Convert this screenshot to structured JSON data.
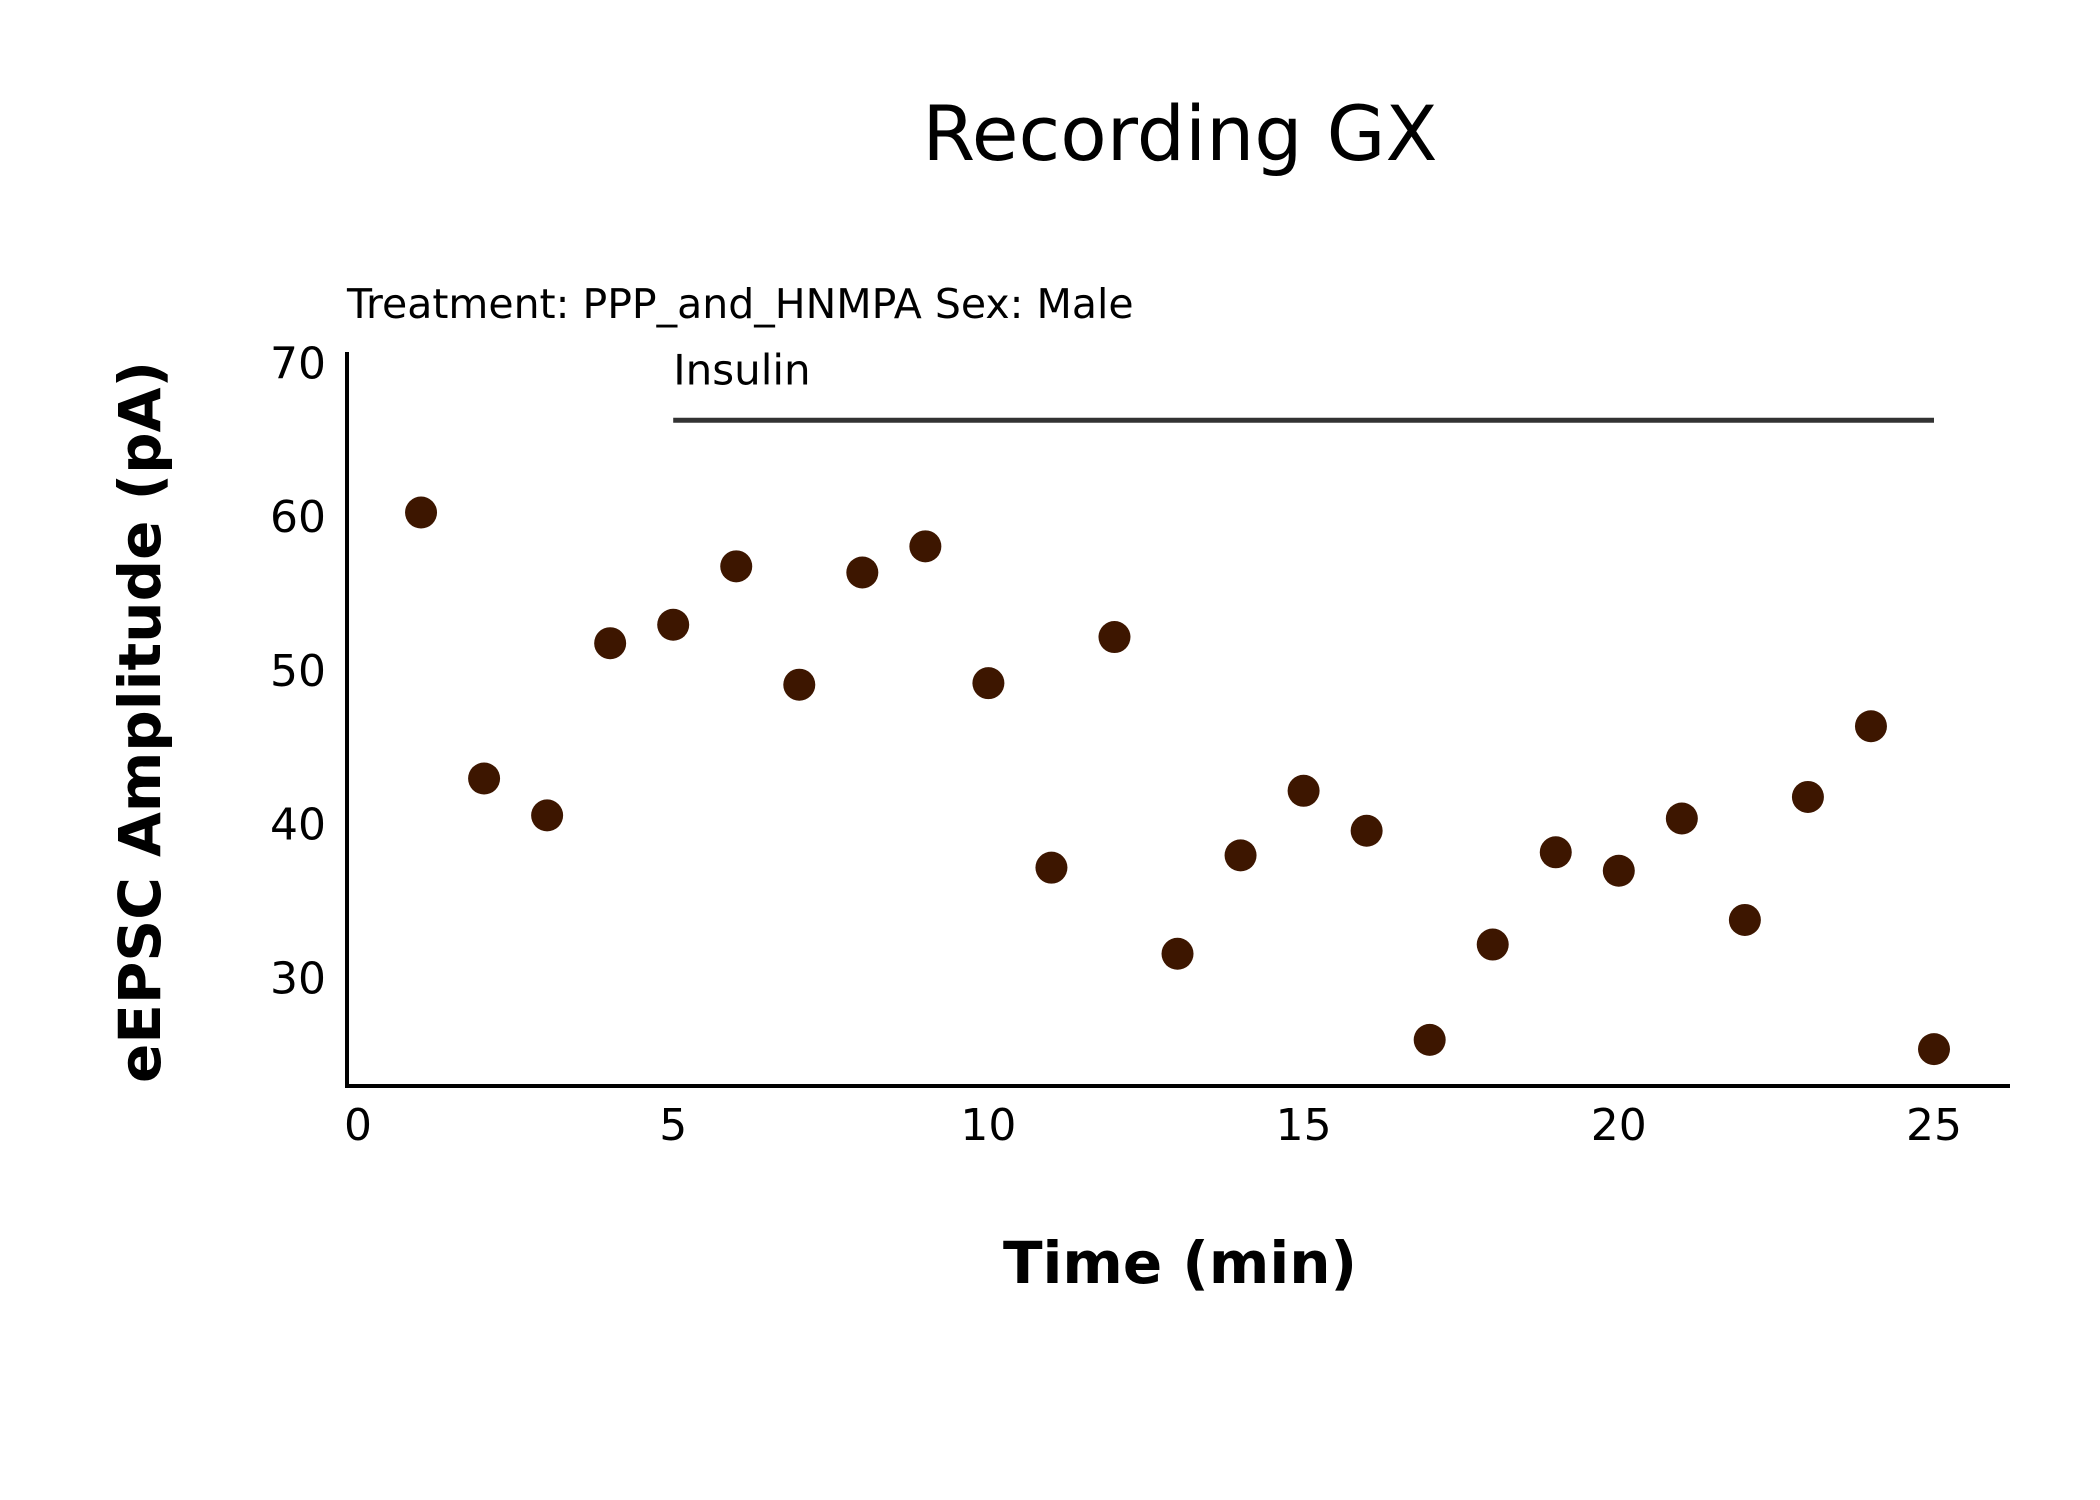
{
  "chart_data": {
    "type": "scatter",
    "title": "Recording GX",
    "subtitle": "Treatment: PPP_and_HNMPA  Sex: Male",
    "xlabel": "Time (min)",
    "ylabel": "eEPSC Amplitude (pA)",
    "xlim": [
      0,
      25
    ],
    "ylim": [
      23,
      71
    ],
    "xticks": [
      0,
      5,
      10,
      15,
      20,
      25
    ],
    "yticks": [
      30,
      40,
      50,
      60,
      70
    ],
    "grid": false,
    "legend": "none",
    "point_color": "#3d1600",
    "annotation": {
      "label": "Insulin",
      "x_start": 5,
      "x_end": 25,
      "y": 66.3
    },
    "series": [
      {
        "x": [
          1,
          2,
          3,
          4,
          5,
          6,
          7,
          8,
          9,
          10,
          11,
          12,
          13,
          14,
          15,
          16,
          17,
          18,
          19,
          20,
          21,
          22,
          23,
          24,
          25
        ],
        "y": [
          60.3,
          43.0,
          40.6,
          51.8,
          53.0,
          56.8,
          49.1,
          56.4,
          58.1,
          49.2,
          37.2,
          52.2,
          31.6,
          38.0,
          42.2,
          39.6,
          26.0,
          32.2,
          38.2,
          37.0,
          40.4,
          33.8,
          41.8,
          46.4,
          25.4
        ]
      }
    ]
  }
}
